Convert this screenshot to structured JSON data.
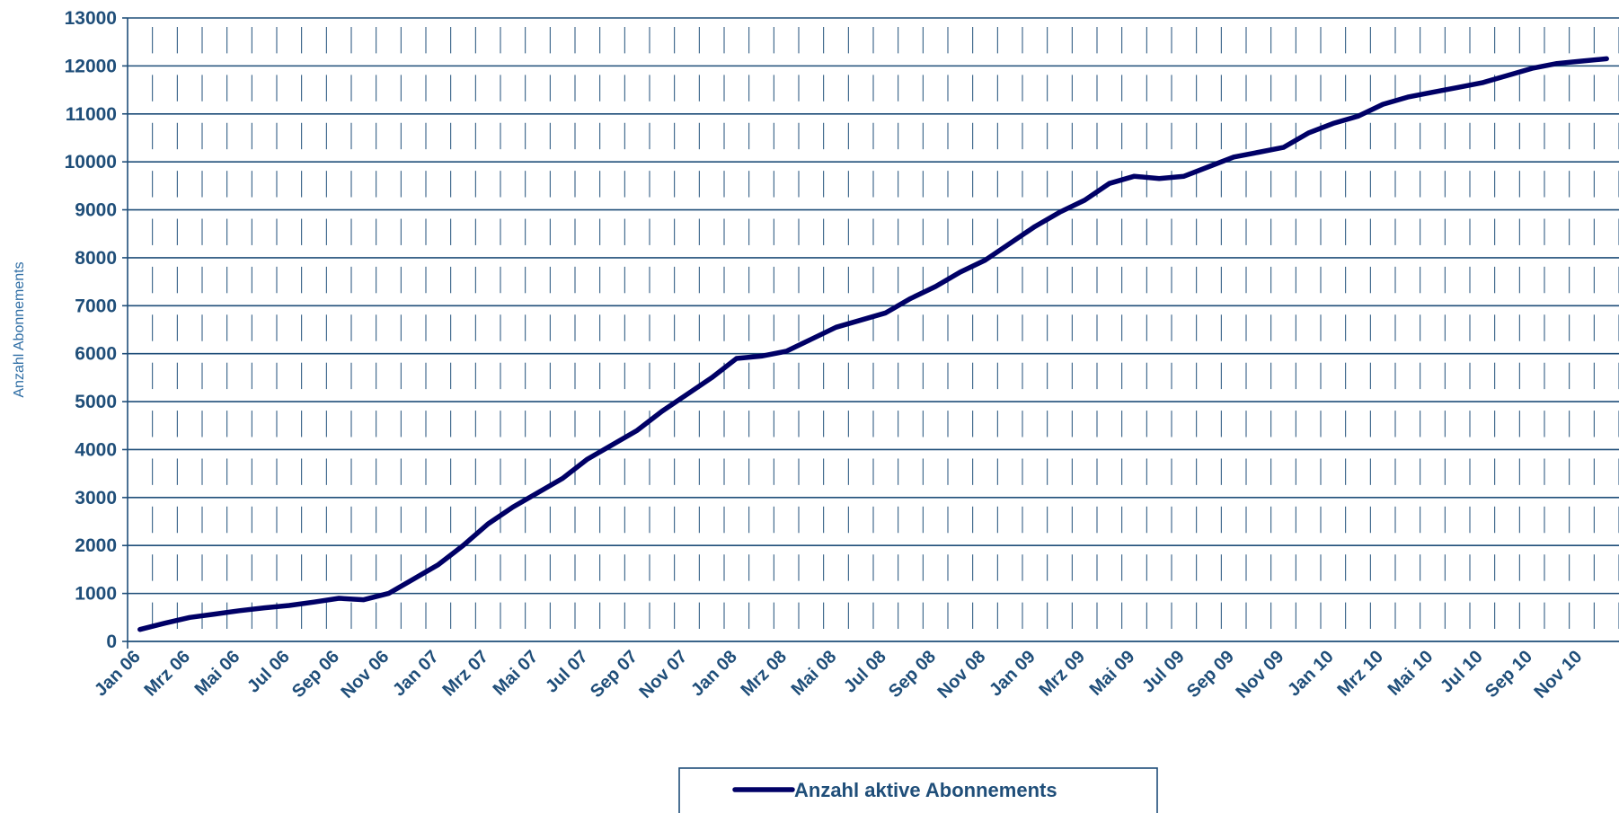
{
  "chart_data": {
    "type": "line",
    "title": "",
    "xlabel": "",
    "ylabel": "Anzahl Abonnements",
    "ylim": [
      0,
      13000
    ],
    "yticks": [
      0,
      1000,
      2000,
      3000,
      4000,
      5000,
      6000,
      7000,
      8000,
      9000,
      10000,
      11000,
      12000,
      13000
    ],
    "grid": true,
    "legend_position": "bottom-center",
    "colors": {
      "line": "#000066",
      "grid": "#1f4e79",
      "text": "#1f4e79"
    },
    "x": [
      "Jan 06",
      "Feb 06",
      "Mrz 06",
      "Apr 06",
      "Mai 06",
      "Jun 06",
      "Jul 06",
      "Aug 06",
      "Sep 06",
      "Okt 06",
      "Nov 06",
      "Dez 06",
      "Jan 07",
      "Feb 07",
      "Mrz 07",
      "Apr 07",
      "Mai 07",
      "Jun 07",
      "Jul 07",
      "Aug 07",
      "Sep 07",
      "Okt 07",
      "Nov 07",
      "Dez 07",
      "Jan 08",
      "Feb 08",
      "Mrz 08",
      "Apr 08",
      "Mai 08",
      "Jun 08",
      "Jul 08",
      "Aug 08",
      "Sep 08",
      "Okt 08",
      "Nov 08",
      "Dez 08",
      "Jan 09",
      "Feb 09",
      "Mrz 09",
      "Apr 09",
      "Mai 09",
      "Jun 09",
      "Jul 09",
      "Aug 09",
      "Sep 09",
      "Okt 09",
      "Nov 09",
      "Dez 09",
      "Jan 10",
      "Feb 10",
      "Mrz 10",
      "Apr 10",
      "Mai 10",
      "Jun 10",
      "Jul 10",
      "Aug 10",
      "Sep 10",
      "Okt 10",
      "Nov 10",
      "Dez 10"
    ],
    "x_tick_labels": [
      "Jan 06",
      "Mrz 06",
      "Mai 06",
      "Jul 06",
      "Sep 06",
      "Nov 06",
      "Jan 07",
      "Mrz 07",
      "Mai 07",
      "Jul 07",
      "Sep 07",
      "Nov 07",
      "Jan 08",
      "Mrz 08",
      "Mai 08",
      "Jul 08",
      "Sep 08",
      "Nov 08",
      "Jan 09",
      "Mrz 09",
      "Mai 09",
      "Jul 09",
      "Sep 09",
      "Nov 09",
      "Jan 10",
      "Mrz 10",
      "Mai 10",
      "Jul 10",
      "Sep 10",
      "Nov 10"
    ],
    "series": [
      {
        "name": "Anzahl aktive Abonnements",
        "values": [
          250,
          380,
          500,
          570,
          640,
          700,
          750,
          820,
          900,
          870,
          1000,
          1300,
          1600,
          2000,
          2450,
          2800,
          3100,
          3400,
          3800,
          4100,
          4400,
          4800,
          5150,
          5500,
          5900,
          5950,
          6050,
          6300,
          6550,
          6700,
          6850,
          7150,
          7400,
          7700,
          7950,
          8300,
          8650,
          8950,
          9200,
          9550,
          9700,
          9650,
          9700,
          9900,
          10100,
          10200,
          10300,
          10600,
          10800,
          10950,
          11200,
          11350,
          11450,
          11550,
          11650,
          11800,
          11950,
          12050,
          12100,
          12150
        ]
      }
    ]
  }
}
